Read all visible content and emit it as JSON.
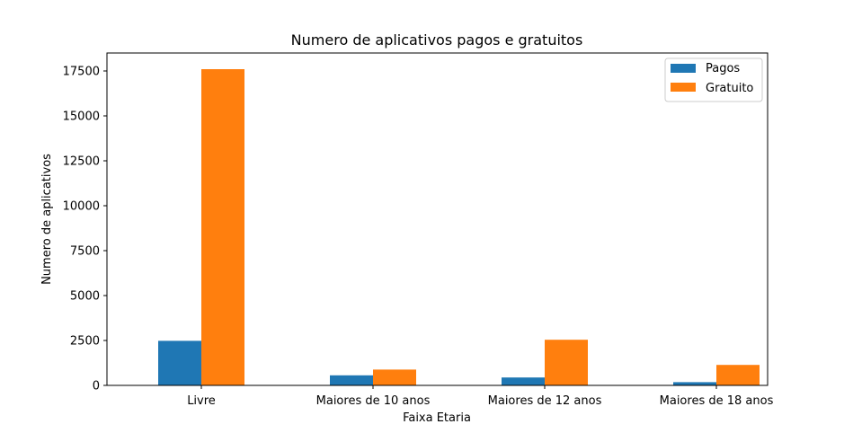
{
  "chart_data": {
    "type": "bar",
    "title": "Numero de aplicativos pagos e gratuitos",
    "xlabel": "Faixa Etaria",
    "ylabel": "Numero de aplicativos",
    "categories": [
      "Livre",
      "Maiores de 10 anos",
      "Maiores de 12 anos",
      "Maiores de 18 anos"
    ],
    "series": [
      {
        "name": "Pagos",
        "color": "#1f77b4",
        "values": [
          2480,
          560,
          440,
          180
        ]
      },
      {
        "name": "Gratuito",
        "color": "#ff7f0e",
        "values": [
          17600,
          880,
          2540,
          1140
        ]
      }
    ],
    "ylim": [
      0,
      18500
    ],
    "yticks": [
      0,
      2500,
      5000,
      7500,
      10000,
      12500,
      15000,
      17500
    ],
    "ytick_labels": [
      "0",
      "2500",
      "5000",
      "7500",
      "10000",
      "12500",
      "15000",
      "17500"
    ],
    "grid": false,
    "legend_position": "top-right"
  }
}
